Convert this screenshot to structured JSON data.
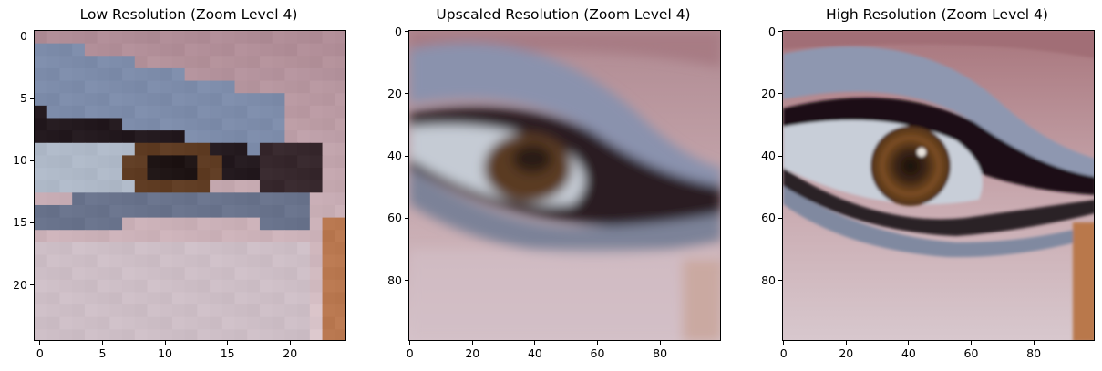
{
  "figure": {
    "panels": [
      {
        "id": "low",
        "title": "Low Resolution (Zoom Level 4)",
        "x_ticks": [
          "0",
          "5",
          "10",
          "15",
          "20"
        ],
        "y_ticks": [
          "0",
          "5",
          "10",
          "15",
          "20"
        ],
        "x_tick_values": [
          0,
          5,
          10,
          15,
          20
        ],
        "y_tick_values": [
          0,
          5,
          10,
          15,
          20
        ],
        "extent": 25,
        "image_description": "pixelated close-up of a human eye with blue eyeshadow and brown iris"
      },
      {
        "id": "upscaled",
        "title": "Upscaled Resolution (Zoom Level 4)",
        "x_ticks": [
          "0",
          "20",
          "40",
          "60",
          "80"
        ],
        "y_ticks": [
          "0",
          "20",
          "40",
          "60",
          "80"
        ],
        "x_tick_values": [
          0,
          20,
          40,
          60,
          80
        ],
        "y_tick_values": [
          0,
          20,
          40,
          60,
          80
        ],
        "extent": 100,
        "image_description": "blurry upscaled close-up of a human eye with blue eyeshadow and brown iris"
      },
      {
        "id": "high",
        "title": "High Resolution (Zoom Level 4)",
        "x_ticks": [
          "0",
          "20",
          "40",
          "60",
          "80"
        ],
        "y_ticks": [
          "0",
          "20",
          "40",
          "60",
          "80"
        ],
        "x_tick_values": [
          0,
          20,
          40,
          60,
          80
        ],
        "y_tick_values": [
          0,
          20,
          40,
          60,
          80
        ],
        "extent": 100,
        "image_description": "sharp close-up of a human eye with blue eyeshadow and brown iris"
      }
    ],
    "colors": {
      "skin": "#c9a9a8",
      "skin_light": "#d8c6cc",
      "eyeshadow": "#8592ad",
      "eyeliner": "#1d1416",
      "iris": "#6a4320",
      "sclera": "#c7cdd6",
      "cheek_orange": "#b9784c"
    }
  }
}
